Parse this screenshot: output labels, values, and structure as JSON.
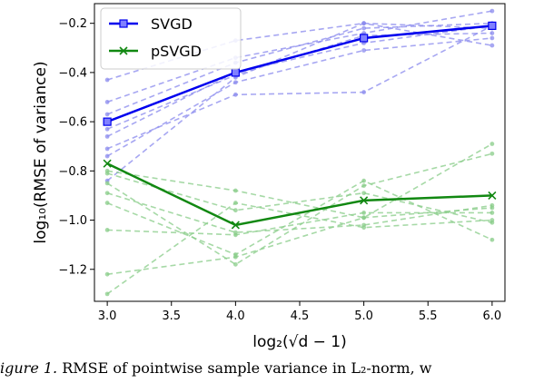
{
  "chart_data": {
    "type": "line",
    "xlabel": "log₂(√d − 1)",
    "ylabel": "log₁₀(RMSE of variance)",
    "xlim": [
      2.9,
      6.1
    ],
    "ylim": [
      -1.33,
      -0.12
    ],
    "x_ticks": [
      3.0,
      3.5,
      4.0,
      4.5,
      5.0,
      5.5,
      6.0
    ],
    "x_tick_labels": [
      "3.0",
      "3.5",
      "4.0",
      "4.5",
      "5.0",
      "5.5",
      "6.0"
    ],
    "y_ticks": [
      -1.2,
      -1.0,
      -0.8,
      -0.6,
      -0.4,
      -0.2
    ],
    "y_tick_labels": [
      "−1.2",
      "−1.0",
      "−0.8",
      "−0.6",
      "−0.4",
      "−0.2"
    ],
    "x": [
      3.0,
      4.0,
      5.0,
      6.0
    ],
    "legend_position": "top-left",
    "grid": false,
    "series": [
      {
        "name": "SVGD",
        "color": "#0000ee",
        "marker": "square",
        "values": [
          -0.6,
          -0.4,
          -0.26,
          -0.21
        ]
      },
      {
        "name": "pSVGD",
        "color": "#118811",
        "marker": "x",
        "values": [
          -0.77,
          -1.02,
          -0.92,
          -0.9
        ]
      }
    ],
    "background_runs": [
      {
        "group": "SVGD",
        "color": "#8a8aee",
        "values": [
          -0.84,
          -0.42,
          -0.2,
          -0.29
        ]
      },
      {
        "group": "SVGD",
        "color": "#8a8aee",
        "values": [
          -0.52,
          -0.34,
          -0.24,
          -0.15
        ]
      },
      {
        "group": "SVGD",
        "color": "#8a8aee",
        "values": [
          -0.43,
          -0.27,
          -0.2,
          -0.22
        ]
      },
      {
        "group": "SVGD",
        "color": "#8a8aee",
        "values": [
          -0.71,
          -0.49,
          -0.48,
          -0.21
        ]
      },
      {
        "group": "SVGD",
        "color": "#8a8aee",
        "values": [
          -0.66,
          -0.4,
          -0.28,
          -0.21
        ]
      },
      {
        "group": "SVGD",
        "color": "#8a8aee",
        "values": [
          -0.74,
          -0.44,
          -0.31,
          -0.26
        ]
      },
      {
        "group": "SVGD",
        "color": "#8a8aee",
        "values": [
          -0.57,
          -0.36,
          -0.22,
          -0.2
        ]
      },
      {
        "group": "SVGD",
        "color": "#8a8aee",
        "values": [
          -0.63,
          -0.41,
          -0.25,
          -0.24
        ]
      },
      {
        "group": "pSVGD",
        "color": "#88cc88",
        "values": [
          -0.8,
          -0.88,
          -0.99,
          -0.69
        ]
      },
      {
        "group": "pSVGD",
        "color": "#88cc88",
        "values": [
          -0.93,
          -1.14,
          -0.84,
          -1.08
        ]
      },
      {
        "group": "pSVGD",
        "color": "#88cc88",
        "values": [
          -1.04,
          -1.06,
          -0.97,
          -0.97
        ]
      },
      {
        "group": "pSVGD",
        "color": "#88cc88",
        "values": [
          -1.22,
          -1.15,
          -0.99,
          -0.95
        ]
      },
      {
        "group": "pSVGD",
        "color": "#88cc88",
        "values": [
          -1.3,
          -0.93,
          -1.03,
          -1.0
        ]
      },
      {
        "group": "pSVGD",
        "color": "#88cc88",
        "values": [
          -0.85,
          -1.18,
          -0.86,
          -0.73
        ]
      },
      {
        "group": "pSVGD",
        "color": "#88cc88",
        "values": [
          -0.81,
          -0.96,
          -0.89,
          -1.01
        ]
      },
      {
        "group": "pSVGD",
        "color": "#88cc88",
        "values": [
          -0.89,
          -1.05,
          -1.02,
          -0.94
        ]
      }
    ]
  },
  "caption": {
    "label": "igure 1.",
    "text": " RMSE of pointwise sample variance in L₂-norm, w"
  }
}
